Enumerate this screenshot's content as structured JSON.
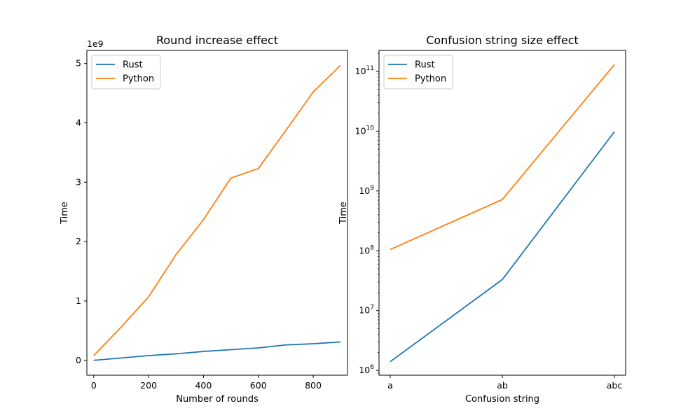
{
  "chart_data": [
    {
      "type": "line",
      "title": "Round increase effect",
      "xlabel": "Number of rounds",
      "ylabel": "Time",
      "y_offset_text": "1e9",
      "xlim": [
        -25,
        925
      ],
      "ylim": [
        -250000000.0,
        5220000000.0
      ],
      "xticks": [
        0,
        200,
        400,
        600,
        800
      ],
      "xtick_labels": [
        "0",
        "200",
        "400",
        "600",
        "800"
      ],
      "yticks": [
        0,
        1000000000.0,
        2000000000.0,
        3000000000.0,
        4000000000.0,
        5000000000.0
      ],
      "ytick_labels": [
        "0",
        "1",
        "2",
        "3",
        "4",
        "5"
      ],
      "legend_position": "upper-left",
      "x": [
        0,
        100,
        200,
        300,
        400,
        500,
        600,
        700,
        800,
        900
      ],
      "series": [
        {
          "name": "Rust",
          "color": "#1f77b4",
          "values": [
            0,
            40000000.0,
            80000000.0,
            110000000.0,
            150000000.0,
            180000000.0,
            210000000.0,
            260000000.0,
            280000000.0,
            310000000.0
          ]
        },
        {
          "name": "Python",
          "color": "#ff7f0e",
          "values": [
            80000000.0,
            560000000.0,
            1070000000.0,
            1780000000.0,
            2370000000.0,
            3070000000.0,
            3230000000.0,
            3870000000.0,
            4520000000.0,
            4970000000.0
          ]
        }
      ]
    },
    {
      "type": "line",
      "title": "Confusion string size effect",
      "xlabel": "Confusion string",
      "ylabel": "Time",
      "yscale": "log",
      "xlim": [
        -0.1,
        2.1
      ],
      "ylim_log10": [
        5.92,
        11.35
      ],
      "categories": [
        "a",
        "ab",
        "abc"
      ],
      "ytick_exponents": [
        "6",
        "7",
        "8",
        "9",
        "10",
        "11"
      ],
      "legend_position": "upper-left",
      "series": [
        {
          "name": "Rust",
          "color": "#1f77b4",
          "values": [
            1400000.0,
            33000000.0,
            9800000000.0
          ]
        },
        {
          "name": "Python",
          "color": "#ff7f0e",
          "values": [
            105000000.0,
            720000000.0,
            130000000000.0
          ]
        }
      ]
    }
  ]
}
